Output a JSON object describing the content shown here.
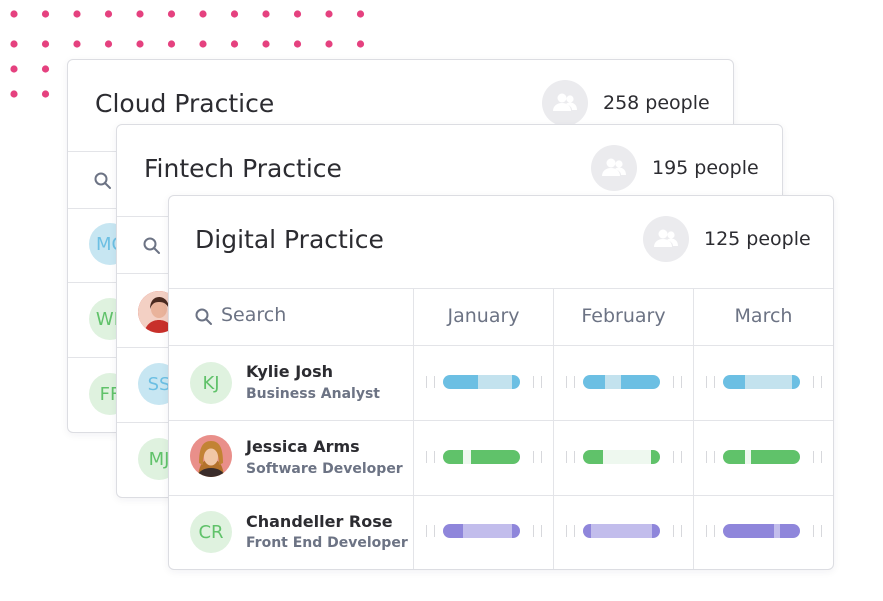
{
  "cards": {
    "cloud": {
      "title": "Cloud Practice",
      "count": "258 people"
    },
    "fintech": {
      "title": "Fintech Practice",
      "count": "195 people"
    },
    "digital": {
      "title": "Digital Practice",
      "count": "125 people",
      "search_label": "Search",
      "months": [
        "January",
        "February",
        "March"
      ],
      "rows": [
        {
          "initials": "KJ",
          "name": "Kylie Josh",
          "role": "Business Analyst"
        },
        {
          "initials": "",
          "name": "Jessica Arms",
          "role": "Software Developer"
        },
        {
          "initials": "CR",
          "name": "Chandeller Rose",
          "role": "Front End Developer"
        }
      ]
    }
  },
  "back_rows": {
    "cloud": [
      "MC",
      "WF",
      "FF"
    ],
    "fintech": [
      "",
      "SS",
      "MJ"
    ]
  },
  "colors": {
    "dots": "#e5417f",
    "blue": "#6cbfe3",
    "blue_light": "#c3e2ee",
    "green": "#60c26a",
    "green_light": "#eef8ef",
    "purple": "#8f86db",
    "purple_light": "#c2bdec"
  },
  "allocation_bars": [
    {
      "row": "Kylie Josh",
      "month": "January",
      "segments": [
        [
          "blue",
          0.45
        ],
        [
          "blue_light",
          0.45
        ],
        [
          "blue",
          0.1
        ]
      ]
    },
    {
      "row": "Kylie Josh",
      "month": "February",
      "segments": [
        [
          "blue",
          0.28
        ],
        [
          "blue_light",
          0.22
        ],
        [
          "blue",
          0.5
        ]
      ]
    },
    {
      "row": "Kylie Josh",
      "month": "March",
      "segments": [
        [
          "blue",
          0.28
        ],
        [
          "blue_light",
          0.62
        ],
        [
          "blue",
          0.1
        ]
      ]
    },
    {
      "row": "Jessica Arms",
      "month": "January",
      "segments": [
        [
          "green",
          0.26
        ],
        [
          "green_light",
          0.1
        ],
        [
          "green",
          0.64
        ]
      ]
    },
    {
      "row": "Jessica Arms",
      "month": "February",
      "segments": [
        [
          "green",
          0.26
        ],
        [
          "green_light",
          0.62
        ],
        [
          "green",
          0.12
        ]
      ]
    },
    {
      "row": "Jessica Arms",
      "month": "March",
      "segments": [
        [
          "green",
          0.28
        ],
        [
          "green_light",
          0.08
        ],
        [
          "green",
          0.64
        ]
      ]
    },
    {
      "row": "Chandeller Rose",
      "month": "January",
      "segments": [
        [
          "purple",
          0.26
        ],
        [
          "purple_light",
          0.64
        ],
        [
          "purple",
          0.1
        ]
      ]
    },
    {
      "row": "Chandeller Rose",
      "month": "February",
      "segments": [
        [
          "purple",
          0.1
        ],
        [
          "purple_light",
          0.8
        ],
        [
          "purple",
          0.1
        ]
      ]
    },
    {
      "row": "Chandeller Rose",
      "month": "March",
      "segments": [
        [
          "purple",
          0.66
        ],
        [
          "purple_light",
          0.08
        ],
        [
          "purple",
          0.26
        ]
      ]
    }
  ]
}
